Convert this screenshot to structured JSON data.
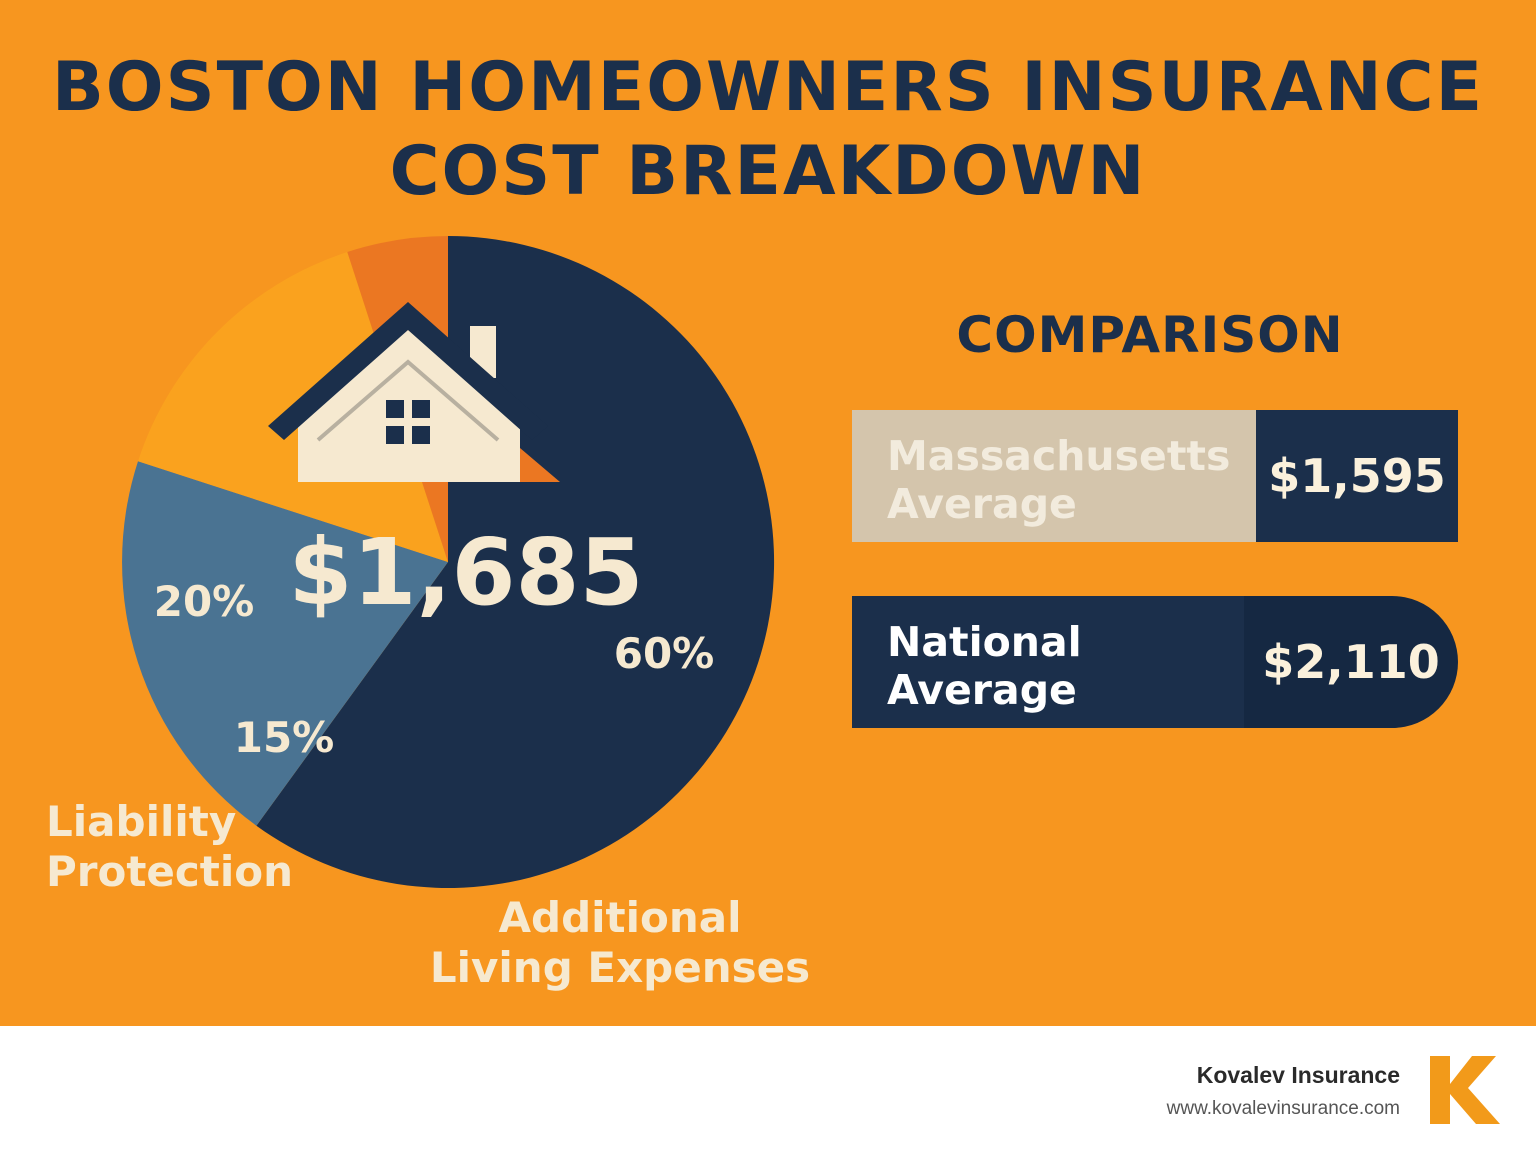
{
  "title": {
    "line1": "BOSTON HOMEOWNERS INSURANCE",
    "line2": "COST BREAKDOWN"
  },
  "chart_data": [
    {
      "type": "pie",
      "center_label": "$1,685",
      "slices": [
        {
          "label": "",
          "value": 60,
          "value_label": "60%",
          "color": "#1B2F4B"
        },
        {
          "label": "",
          "value": 20,
          "value_label": "20%",
          "color": "#4A7392"
        },
        {
          "label": "Liability Protection",
          "value": 15,
          "value_label": "15%",
          "color": "#FAA21E"
        },
        {
          "label": "",
          "value": null,
          "value_label": "",
          "color": "#EB7722"
        }
      ],
      "annotations": [
        "Liability Protection",
        "Additional Living Expenses"
      ]
    },
    {
      "type": "bar",
      "title": "COMPARISON",
      "categories": [
        "Massachusetts Average",
        "National Average"
      ],
      "values": [
        1595,
        2110
      ],
      "value_labels": [
        "$1,595",
        "$2,110"
      ]
    }
  ],
  "labels": {
    "liability_line1": "Liability",
    "liability_line2": "Protection",
    "ale_line1": "Additional",
    "ale_line2": "Living Expenses"
  },
  "comparison": {
    "heading": "COMPARISON",
    "massachusetts": {
      "line1": "Massachusetts",
      "line2": "Average",
      "value": "$1,595"
    },
    "national": {
      "line1": "National",
      "line2": "Average",
      "value": "$2,110"
    }
  },
  "footer": {
    "brand": "Kovalev Insurance",
    "url": "www.kovalevinsurance.com",
    "logo_letter": "K"
  },
  "colors": {
    "background": "#F7961F",
    "navy": "#1B2F4B",
    "steel_blue": "#4A7392",
    "dark_orange": "#EB7722",
    "light_orange": "#FAA21E",
    "cream": "#F6E9D0",
    "beige": "#D4C5AC"
  }
}
